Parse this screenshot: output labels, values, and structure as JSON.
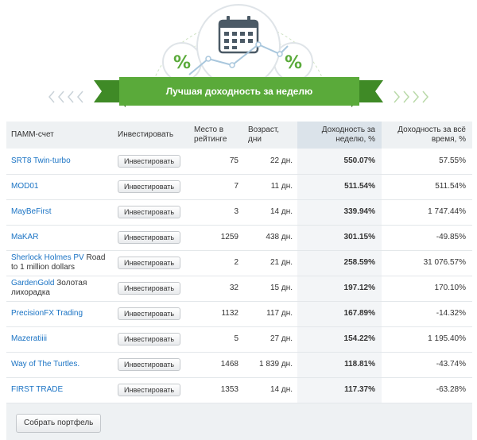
{
  "banner": {
    "title": "Лучшая доходность за неделю",
    "icons": [
      "calendar-icon",
      "percent-icon",
      "percent-icon",
      "chevrons-left-icon",
      "chevrons-right-icon"
    ]
  },
  "table": {
    "headers": {
      "account": "ПАММ-счет",
      "invest": "Инвестировать",
      "place": "Место в рейтинге",
      "age": "Возраст, дни",
      "week": "Доходность за неделю, %",
      "all": "Доходность за всё время, %"
    },
    "rows": [
      {
        "name": "SRT8 Twin-turbo",
        "sub": "",
        "invest": "Инвестировать",
        "place": "75",
        "age": "22 дн.",
        "week": "550.07%",
        "all": "57.55%"
      },
      {
        "name": "MOD01",
        "sub": "",
        "invest": "Инвестировать",
        "place": "7",
        "age": "11 дн.",
        "week": "511.54%",
        "all": "511.54%"
      },
      {
        "name": "MayBeFirst",
        "sub": "",
        "invest": "Инвестировать",
        "place": "3",
        "age": "14 дн.",
        "week": "339.94%",
        "all": "1 747.44%"
      },
      {
        "name": "MaKAR",
        "sub": "",
        "invest": "Инвестировать",
        "place": "1259",
        "age": "438 дн.",
        "week": "301.15%",
        "all": "-49.85%"
      },
      {
        "name": "Sherlock Holmes PV",
        "sub": "Road to 1 million dollars",
        "invest": "Инвестировать",
        "place": "2",
        "age": "21 дн.",
        "week": "258.59%",
        "all": "31 076.57%"
      },
      {
        "name": "GardenGold",
        "sub": "Золотая лихорадка",
        "invest": "Инвестировать",
        "place": "32",
        "age": "15 дн.",
        "week": "197.12%",
        "all": "170.10%"
      },
      {
        "name": "PrecisionFX Trading",
        "sub": "",
        "invest": "Инвестировать",
        "place": "1132",
        "age": "117 дн.",
        "week": "167.89%",
        "all": "-14.32%"
      },
      {
        "name": "Mazeratiiii",
        "sub": "",
        "invest": "Инвестировать",
        "place": "5",
        "age": "27 дн.",
        "week": "154.22%",
        "all": "1 195.40%"
      },
      {
        "name": "Way of The Turtles.",
        "sub": "",
        "invest": "Инвестировать",
        "place": "1468",
        "age": "1 839 дн.",
        "week": "118.81%",
        "all": "-43.74%"
      },
      {
        "name": "FIRST TRADE",
        "sub": "",
        "invest": "Инвестировать",
        "place": "1353",
        "age": "14 дн.",
        "week": "117.37%",
        "all": "-63.28%"
      }
    ]
  },
  "footer": {
    "portfolio_button": "Собрать портфель"
  },
  "colors": {
    "accent_green": "#5aaa3a",
    "link_blue": "#1a73c4",
    "panel": "#eef1f3",
    "highlight_column": "#dbe3ea"
  }
}
